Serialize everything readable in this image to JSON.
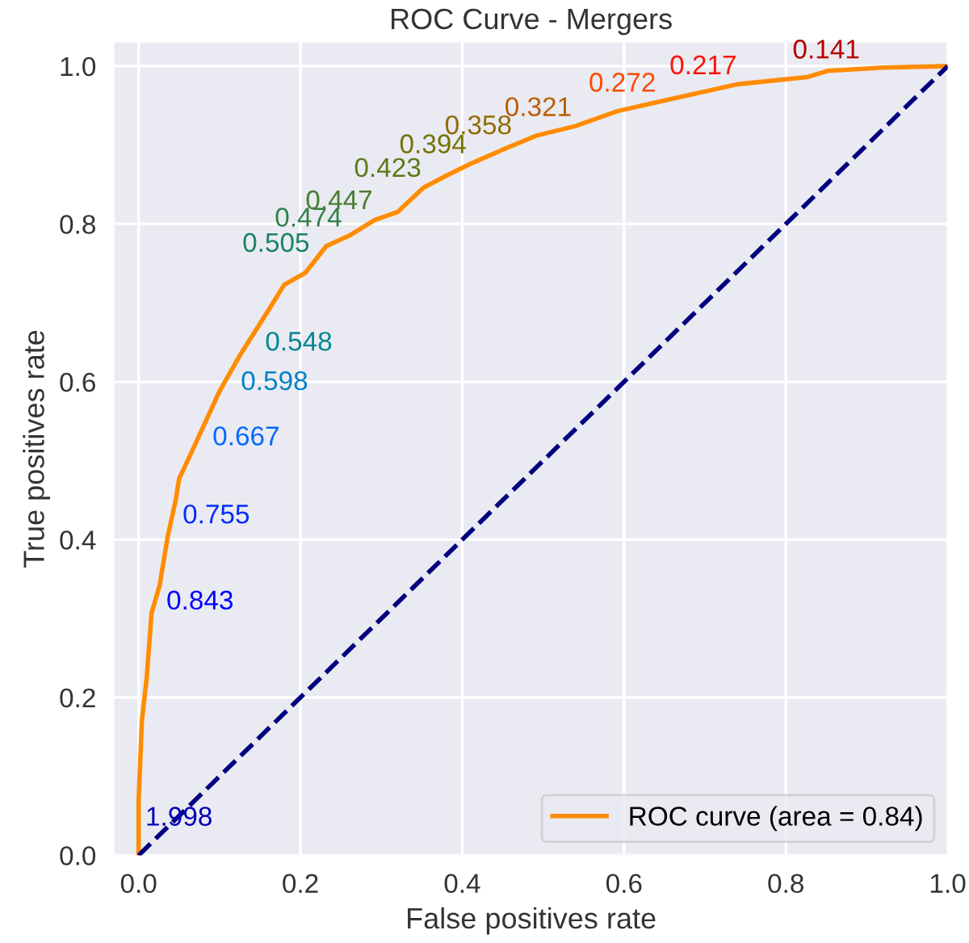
{
  "chart_data": {
    "type": "line",
    "title": "ROC Curve - Mergers",
    "xlabel": "False positives rate",
    "ylabel": "True positives rate",
    "series": [
      {
        "name": "ROC curve (area = 0.84)",
        "color": "#ff8c00",
        "line_style": "solid",
        "x": [
          0,
          0.0,
          0.004,
          0.01,
          0.016,
          0.026,
          0.036,
          0.046,
          0.05,
          0.066,
          0.1,
          0.126,
          0.16,
          0.18,
          0.206,
          0.232,
          0.26,
          0.292,
          0.32,
          0.352,
          0.38,
          0.412,
          0.452,
          0.492,
          0.54,
          0.592,
          0.652,
          0.74,
          0.826,
          0.852,
          0.92,
          1.0
        ],
        "values": [
          0,
          0.068,
          0.17,
          0.225,
          0.307,
          0.342,
          0.404,
          0.451,
          0.477,
          0.512,
          0.588,
          0.635,
          0.69,
          0.723,
          0.738,
          0.772,
          0.785,
          0.805,
          0.815,
          0.846,
          0.861,
          0.877,
          0.895,
          0.912,
          0.924,
          0.943,
          0.957,
          0.977,
          0.986,
          0.994,
          0.998,
          1.0
        ]
      },
      {
        "color": "#000080",
        "line_style": "dashed",
        "x": [
          0,
          1
        ],
        "values": [
          0,
          1
        ]
      }
    ],
    "annotations": [
      {
        "text": "1.998",
        "x": 0.0,
        "y": 0.068
      },
      {
        "text": "0.843",
        "x": 0.026,
        "y": 0.342
      },
      {
        "text": "0.755",
        "x": 0.046,
        "y": 0.451
      },
      {
        "text": "0.667",
        "x": 0.083,
        "y": 0.55
      },
      {
        "text": "0.598",
        "x": 0.118,
        "y": 0.62
      },
      {
        "text": "0.548",
        "x": 0.148,
        "y": 0.67
      },
      {
        "text": "0.505",
        "x": 0.217,
        "y": 0.752
      },
      {
        "text": "0.474",
        "x": 0.257,
        "y": 0.784
      },
      {
        "text": "0.447",
        "x": 0.295,
        "y": 0.806
      },
      {
        "text": "0.423",
        "x": 0.355,
        "y": 0.847
      },
      {
        "text": "0.394",
        "x": 0.411,
        "y": 0.877
      },
      {
        "text": "0.358",
        "x": 0.467,
        "y": 0.901
      },
      {
        "text": "0.321",
        "x": 0.541,
        "y": 0.924
      },
      {
        "text": "0.272",
        "x": 0.645,
        "y": 0.955
      },
      {
        "text": "0.217",
        "x": 0.745,
        "y": 0.977
      },
      {
        "text": "0.141",
        "x": 0.897,
        "y": 0.997
      }
    ],
    "xlim": [
      -0.03,
      1.0
    ],
    "ylim": [
      0,
      1.03
    ],
    "xticks": [
      {
        "value": 0,
        "label": "0.0"
      },
      {
        "value": 0.2,
        "label": "0.2"
      },
      {
        "value": 0.4,
        "label": "0.4"
      },
      {
        "value": 0.6,
        "label": "0.6"
      },
      {
        "value": 0.8,
        "label": "0.8"
      },
      {
        "value": 1.0,
        "label": "1.0"
      }
    ],
    "yticks": [
      {
        "value": 0,
        "label": "0.0"
      },
      {
        "value": 0.2,
        "label": "0.2"
      },
      {
        "value": 0.4,
        "label": "0.4"
      },
      {
        "value": 0.6,
        "label": "0.6"
      },
      {
        "value": 0.8,
        "label": "0.8"
      },
      {
        "value": 1.0,
        "label": "1.0"
      }
    ],
    "grid": true,
    "legend": "bottom right"
  }
}
